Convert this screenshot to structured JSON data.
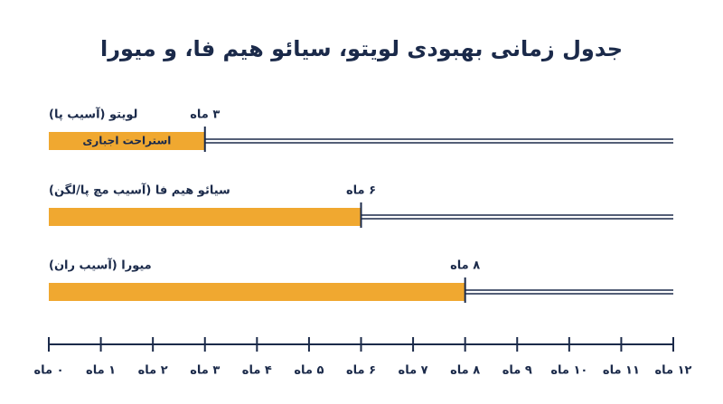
{
  "chart_data": {
    "type": "bar",
    "orientation": "horizontal",
    "title": "جدول زمانی بهبودی لویتو، سیائو هیم فا، و میورا",
    "categories": [
      "لویتو (آسیب پا)",
      "سیائو هیم فا (آسیب مچ پا/لگن)",
      "میورا (آسیب ران)"
    ],
    "values": [
      3,
      6,
      8
    ],
    "value_labels": [
      "۳ ماه",
      "۶ ماه",
      "۸ ماه"
    ],
    "annotations": [
      "استراحت اجباری"
    ],
    "color": "#f0a830",
    "line_color": "#1b2a4a",
    "xlim": [
      0,
      12
    ],
    "xticks": [
      {
        "value": 0,
        "label": "۰ ماه"
      },
      {
        "value": 1,
        "label": "۱ ماه"
      },
      {
        "value": 2,
        "label": "۲ ماه"
      },
      {
        "value": 3,
        "label": "۳ ماه"
      },
      {
        "value": 4,
        "label": "۴ ماه"
      },
      {
        "value": 5,
        "label": "۵ ماه"
      },
      {
        "value": 6,
        "label": "۶ ماه"
      },
      {
        "value": 7,
        "label": "۷ ماه"
      },
      {
        "value": 8,
        "label": "۸ ماه"
      },
      {
        "value": 9,
        "label": "۹ ماه"
      },
      {
        "value": 10,
        "label": "۱۰ ماه"
      },
      {
        "value": 11,
        "label": "۱۱ ماه"
      },
      {
        "value": 12,
        "label": "۱۲ ماه"
      }
    ]
  }
}
